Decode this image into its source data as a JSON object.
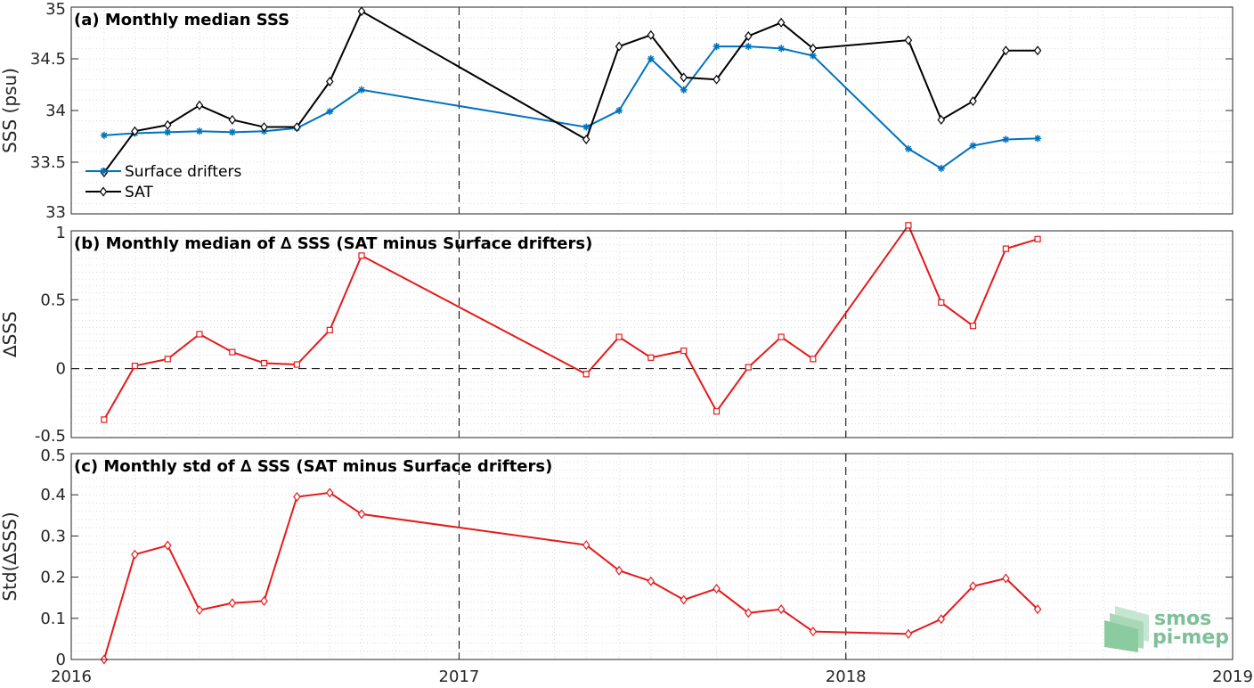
{
  "chart_data": [
    {
      "type": "line",
      "title": "(a) Monthly median SSS",
      "ylabel": "SSS (psu)",
      "ylim": [
        33,
        35
      ],
      "yticks": [
        "33",
        "33.5",
        "34",
        "34.5",
        "35"
      ],
      "grid": true,
      "legend_placement": "bottom-left",
      "series": [
        {
          "name": "Surface drifters",
          "color": "#0072BD",
          "marker": "asterisk",
          "x": [
            "2016-02",
            "2016-03",
            "2016-04",
            "2016-05",
            "2016-06",
            "2016-07",
            "2016-08",
            "2016-09",
            "2016-10",
            "2017-05",
            "2017-06",
            "2017-07",
            "2017-08",
            "2017-09",
            "2017-10",
            "2017-11",
            "2017-12",
            "2018-03",
            "2018-04",
            "2018-05",
            "2018-06",
            "2018-07"
          ],
          "values": [
            33.76,
            33.78,
            33.79,
            33.8,
            33.79,
            33.8,
            33.83,
            33.99,
            34.2,
            33.84,
            34.0,
            34.5,
            34.2,
            34.62,
            34.62,
            34.6,
            34.53,
            33.63,
            33.44,
            33.66,
            33.72,
            33.73
          ]
        },
        {
          "name": "SAT",
          "color": "#000000",
          "marker": "diamond",
          "x": [
            "2016-02",
            "2016-03",
            "2016-04",
            "2016-05",
            "2016-06",
            "2016-07",
            "2016-08",
            "2016-09",
            "2016-10",
            "2017-05",
            "2017-06",
            "2017-07",
            "2017-08",
            "2017-09",
            "2017-10",
            "2017-11",
            "2017-12",
            "2018-03",
            "2018-04",
            "2018-05",
            "2018-06",
            "2018-07"
          ],
          "values": [
            33.4,
            33.8,
            33.86,
            34.05,
            33.91,
            33.84,
            33.84,
            34.28,
            34.96,
            33.72,
            34.62,
            34.73,
            34.32,
            34.3,
            34.72,
            34.85,
            34.6,
            34.68,
            33.91,
            34.09,
            34.58,
            34.58
          ]
        }
      ]
    },
    {
      "type": "line",
      "title": "(b) Monthly median of ∆ SSS (SAT minus Surface drifters)",
      "ylabel": "∆SSS",
      "ylim": [
        -0.5,
        1
      ],
      "yticks": [
        "-0.5",
        "0",
        "0.5",
        "1"
      ],
      "grid": true,
      "reference_line": 0,
      "series": [
        {
          "color": "#E41A1C",
          "marker": "square",
          "x": [
            "2016-02",
            "2016-03",
            "2016-04",
            "2016-05",
            "2016-06",
            "2016-07",
            "2016-08",
            "2016-09",
            "2016-10",
            "2017-05",
            "2017-06",
            "2017-07",
            "2017-08",
            "2017-09",
            "2017-10",
            "2017-11",
            "2017-12",
            "2018-03",
            "2018-04",
            "2018-05",
            "2018-06",
            "2018-07"
          ],
          "values": [
            -0.37,
            0.02,
            0.07,
            0.25,
            0.12,
            0.04,
            0.03,
            0.28,
            0.82,
            -0.04,
            0.23,
            0.08,
            0.13,
            -0.31,
            0.01,
            0.23,
            0.07,
            1.04,
            0.48,
            0.31,
            0.87,
            0.94
          ]
        }
      ]
    },
    {
      "type": "line",
      "title": "(c) Monthly std of ∆ SSS (SAT minus Surface drifters)",
      "ylabel": "Std(∆SSS)",
      "ylim": [
        0,
        0.5
      ],
      "yticks": [
        "0",
        "0.1",
        "0.2",
        "0.3",
        "0.4",
        "0.5"
      ],
      "grid": true,
      "xlim": [
        "2016-01-01",
        "2019-01-01"
      ],
      "xticks": [
        "2016",
        "2017",
        "2018",
        "2019"
      ],
      "series": [
        {
          "color": "#E41A1C",
          "marker": "diamond",
          "x": [
            "2016-02",
            "2016-03",
            "2016-04",
            "2016-05",
            "2016-06",
            "2016-07",
            "2016-08",
            "2016-09",
            "2016-10",
            "2017-05",
            "2017-06",
            "2017-07",
            "2017-08",
            "2017-09",
            "2017-10",
            "2017-11",
            "2017-12",
            "2018-03",
            "2018-04",
            "2018-05",
            "2018-06",
            "2018-07"
          ],
          "values": [
            0.0,
            0.255,
            0.277,
            0.12,
            0.137,
            0.142,
            0.395,
            0.405,
            0.353,
            0.278,
            0.216,
            0.19,
            0.145,
            0.172,
            0.113,
            0.122,
            0.068,
            0.062,
            0.098,
            0.178,
            0.197,
            0.122
          ]
        }
      ]
    }
  ],
  "watermark": {
    "line1": "smos",
    "line2": "pi-mep",
    "color": "#7fbf9a"
  }
}
